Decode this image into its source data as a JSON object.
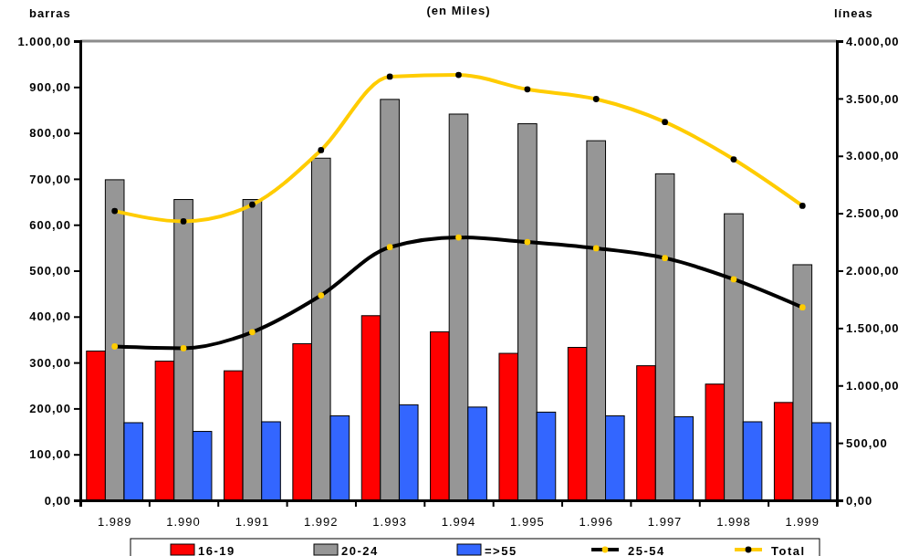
{
  "chart_data": {
    "type": "bar",
    "title": "(en Miles)",
    "ylabel": "barras",
    "y2label": "líneas",
    "categories": [
      "1.989",
      "1.990",
      "1.991",
      "1.992",
      "1.993",
      "1.994",
      "1.995",
      "1.996",
      "1.997",
      "1.998",
      "1.999"
    ],
    "series": [
      {
        "name": "16-19",
        "color": "#ff0000",
        "values": [
          325,
          303,
          282,
          341,
          402,
          367,
          320,
          333,
          293,
          253,
          213
        ]
      },
      {
        "name": "20-24",
        "color": "#969696",
        "values": [
          698,
          655,
          655,
          745,
          873,
          841,
          820,
          783,
          711,
          624,
          513
        ]
      },
      {
        "name": "=>55",
        "color": "#3366ff",
        "values": [
          169,
          150,
          171,
          184,
          208,
          203,
          192,
          184,
          182,
          171,
          169
        ]
      },
      {
        "name": "25-54",
        "type": "line",
        "axis": "y2",
        "color": "#000000",
        "values": [
          1340,
          1325,
          1465,
          1785,
          2205,
          2290,
          2250,
          2195,
          2110,
          1925,
          1680
        ]
      },
      {
        "name": "Total",
        "type": "line",
        "axis": "y2",
        "color": "#ffcc00",
        "values": [
          2520,
          2430,
          2575,
          3050,
          3690,
          3705,
          3580,
          3495,
          3295,
          2970,
          2565
        ]
      }
    ],
    "ylim": [
      0,
      1000
    ],
    "yticks": [
      {
        "value": 0,
        "label": "0,00"
      },
      {
        "value": 100,
        "label": "100,00"
      },
      {
        "value": 200,
        "label": "200,00"
      },
      {
        "value": 300,
        "label": "300,00"
      },
      {
        "value": 400,
        "label": "400,00"
      },
      {
        "value": 500,
        "label": "500,00"
      },
      {
        "value": 600,
        "label": "600,00"
      },
      {
        "value": 700,
        "label": "700,00"
      },
      {
        "value": 800,
        "label": "800,00"
      },
      {
        "value": 900,
        "label": "900,00"
      },
      {
        "value": 1000,
        "label": "1.000,00"
      }
    ],
    "y2lim": [
      0,
      4000
    ],
    "y2ticks": [
      {
        "value": 0,
        "label": "0,00"
      },
      {
        "value": 500,
        "label": "500,00"
      },
      {
        "value": 1000,
        "label": "1.000,00"
      },
      {
        "value": 1500,
        "label": "1.500,00"
      },
      {
        "value": 2000,
        "label": "2.000,00"
      },
      {
        "value": 2500,
        "label": "2.500,00"
      },
      {
        "value": 3000,
        "label": "3.000,00"
      },
      {
        "value": 3500,
        "label": "3.500,00"
      },
      {
        "value": 4000,
        "label": "4.000,00"
      }
    ],
    "marker": "circle",
    "grid": false,
    "legend": "bottom"
  }
}
